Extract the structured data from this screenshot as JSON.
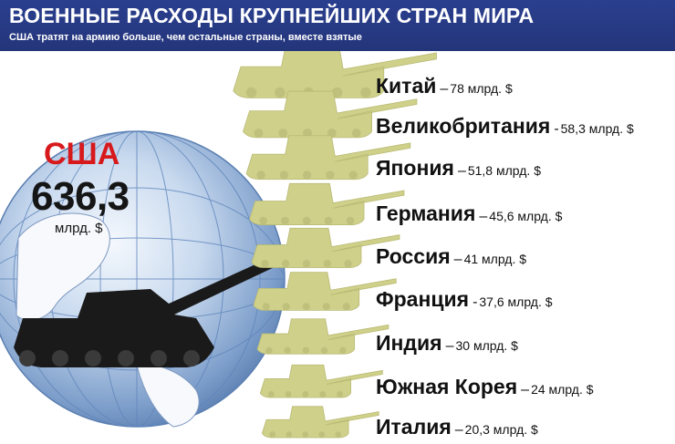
{
  "header": {
    "title": "ВОЕННЫЕ РАСХОДЫ КРУПНЕЙШИХ СТРАН МИРА",
    "subtitle": "США тратят на армию больше, чем остальные страны, вместе взятые"
  },
  "highlight": {
    "country": "США",
    "value": "636,3",
    "unit": "млрд. $"
  },
  "colors": {
    "header_bg": "#26387f",
    "tank_fill": "#cfd08a",
    "us_label": "#d7191c",
    "us_tank": "#1a1a1a"
  },
  "chart_data": {
    "type": "bar",
    "categories": [
      "Китай",
      "Великобритания",
      "Япония",
      "Германия",
      "Россия",
      "Франция",
      "Индия",
      "Южная Корея",
      "Италия"
    ],
    "values": [
      78,
      58.3,
      51.8,
      45.6,
      41,
      37.6,
      30,
      24,
      20.3
    ],
    "value_labels": [
      "78 млрд. $",
      "58,3 млрд. $",
      "51,8 млрд. $",
      "45,6 млрд. $",
      "41 млрд. $",
      "37,6 млрд. $",
      "30 млрд. $",
      "24 млрд. $",
      "20,3 млрд. $"
    ],
    "separators": [
      "–",
      "-",
      "–",
      "–",
      "–",
      "-",
      "–",
      "–",
      "–"
    ],
    "extra_point": {
      "category": "США",
      "value": 636.3
    }
  }
}
